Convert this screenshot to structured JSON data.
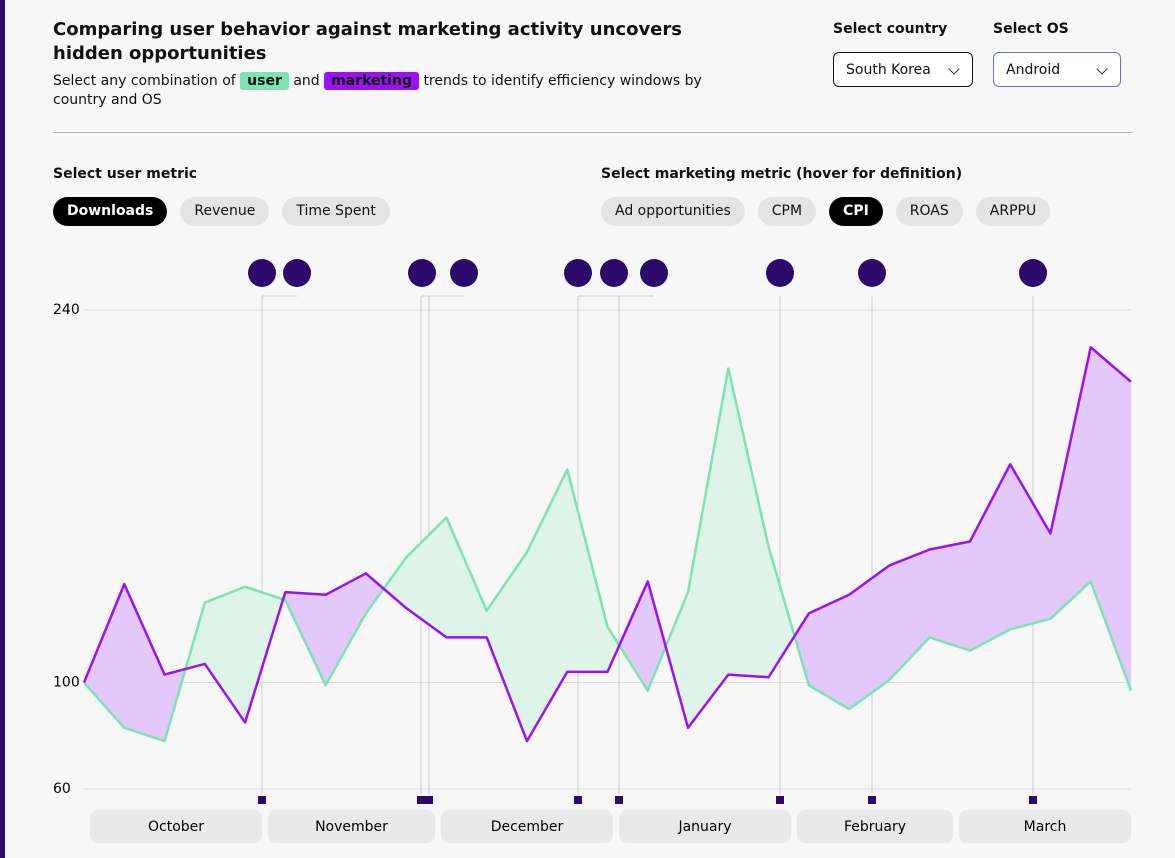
{
  "header": {
    "title": "Comparing user behavior against marketing activity uncovers hidden opportunities",
    "subtitle": [
      "Select any combination of",
      "and",
      "trends to identify efficiency windows by country and OS"
    ]
  },
  "filters": {
    "country": {
      "label": "Select country",
      "value": "South Korea"
    },
    "os": {
      "label": "Select OS",
      "value": "Android"
    }
  },
  "user_metric": {
    "label": "Select user metric",
    "options": [
      "Downloads",
      "Revenue",
      "Time Spent"
    ],
    "selected": 0
  },
  "marketing_metric": {
    "label": "Select marketing metric (hover for definition)",
    "options": [
      "Ad opportunities",
      "CPM",
      "CPI",
      "ROAS",
      "ARPPU"
    ],
    "selected": 2
  },
  "chart_data": {
    "type": "line",
    "series": [
      {
        "name": "user",
        "color": "#7de3b0",
        "fill": "#dff4e8",
        "values": [
          100,
          83,
          78,
          130,
          136,
          131,
          99,
          126,
          147,
          162,
          127,
          149,
          180,
          121,
          97,
          134,
          218,
          151,
          99,
          90,
          101,
          117,
          112,
          120,
          124,
          138,
          97
        ]
      },
      {
        "name": "marketing",
        "color": "#9b12f0",
        "fill": "#e3c8fb",
        "values": [
          100,
          137,
          103,
          107,
          85,
          134,
          133,
          141,
          128,
          117,
          117,
          78,
          104,
          104,
          138,
          83,
          103,
          102,
          126,
          133,
          144,
          150,
          153,
          182,
          156,
          226,
          213
        ]
      }
    ],
    "ylim": [
      60,
      240
    ],
    "yticks": [
      60,
      100,
      240
    ],
    "grid": true,
    "months": [
      "October",
      "November",
      "December",
      "January",
      "February",
      "March"
    ]
  }
}
